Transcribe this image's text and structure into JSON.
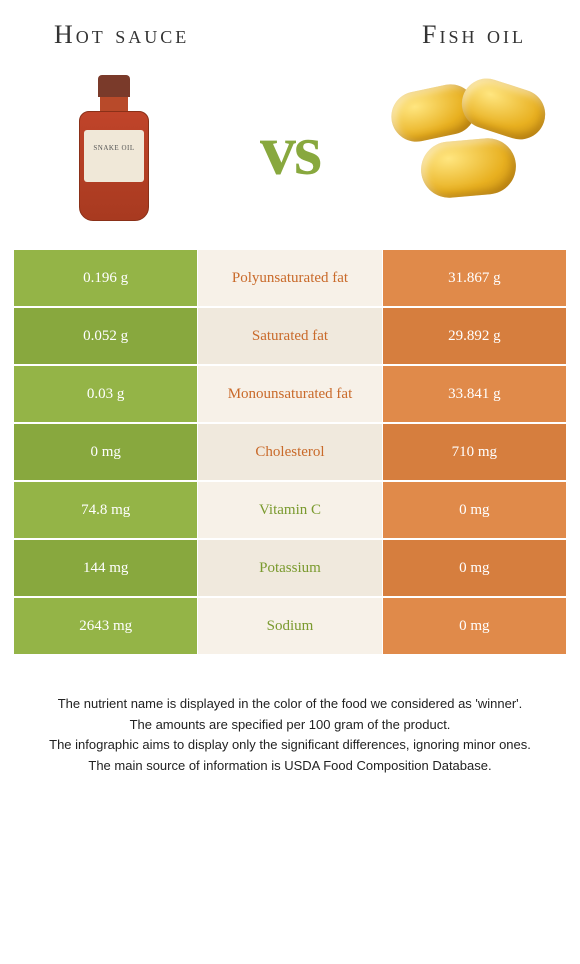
{
  "titles": {
    "left": "Hot sauce",
    "right": "Fish oil"
  },
  "vs": "vs",
  "bottle_label": "SNAKE OIL",
  "colors": {
    "left_bg": "#94b447",
    "left_bg_alt": "#88a83e",
    "mid_bg": "#f7f1e8",
    "mid_bg_alt": "#f0e9dd",
    "right_bg": "#e08a4a",
    "right_bg_alt": "#d67e3e",
    "winner_left": "#7a9a2e",
    "winner_right": "#c96a2a"
  },
  "rows": [
    {
      "left": "0.196 g",
      "label": "Polyunsaturated fat",
      "right": "31.867 g",
      "winner": "right"
    },
    {
      "left": "0.052 g",
      "label": "Saturated fat",
      "right": "29.892 g",
      "winner": "right"
    },
    {
      "left": "0.03 g",
      "label": "Monounsaturated fat",
      "right": "33.841 g",
      "winner": "right"
    },
    {
      "left": "0 mg",
      "label": "Cholesterol",
      "right": "710 mg",
      "winner": "right"
    },
    {
      "left": "74.8 mg",
      "label": "Vitamin C",
      "right": "0 mg",
      "winner": "left"
    },
    {
      "left": "144 mg",
      "label": "Potassium",
      "right": "0 mg",
      "winner": "left"
    },
    {
      "left": "2643 mg",
      "label": "Sodium",
      "right": "0 mg",
      "winner": "left"
    }
  ],
  "footer": [
    "The nutrient name is displayed in the color of the food we considered as 'winner'.",
    "The amounts are specified per 100 gram of the product.",
    "The infographic aims to display only the significant differences, ignoring minor ones.",
    "The main source of information is USDA Food Composition Database."
  ]
}
